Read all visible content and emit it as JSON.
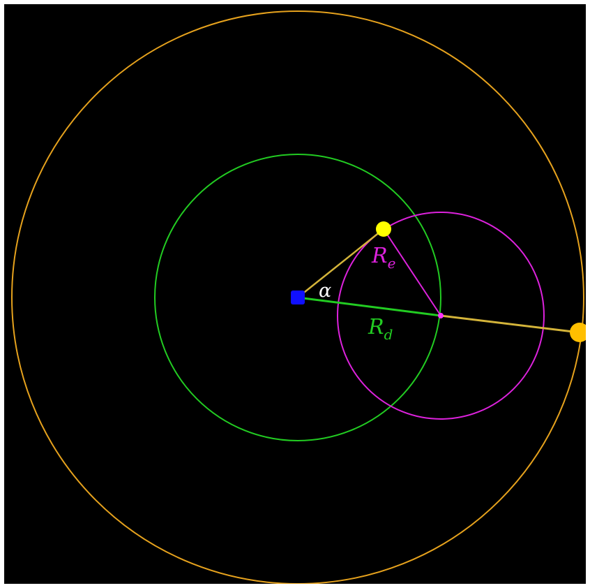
{
  "diagram": {
    "background": "#000000",
    "colors": {
      "outer_circle": "#e6a21d",
      "deferent_circle": "#22cc22",
      "epicycle_circle": "#dd22dd",
      "earth": "#1010ff",
      "planet": "#ffff00",
      "outer_point": "#ffbf00",
      "epicycle_center": "#ff33ff",
      "connector": "#d4b43a",
      "alpha_label": "#ffffff"
    },
    "labels": {
      "alpha": "α",
      "re_main": "R",
      "re_sub": "e",
      "rd_main": "R",
      "rd_sub": "d"
    }
  }
}
